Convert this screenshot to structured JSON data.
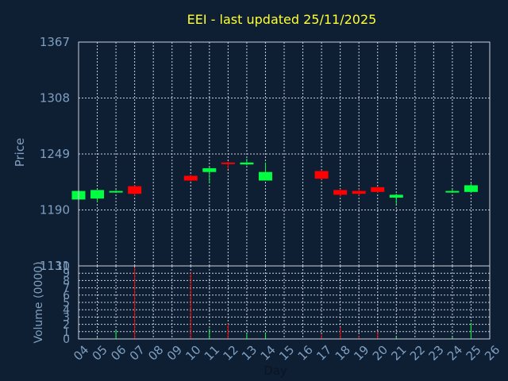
{
  "chart_data": {
    "type": "candlestick",
    "title": "EEI - last updated 25/11/2025",
    "ylabel": "Price",
    "ylabel_volume": "Volume (0000)",
    "xlabel": "Day",
    "ylim": [
      1131,
      1367
    ],
    "y_ticks": [
      "1367",
      "1308",
      "1249",
      "1190",
      "1131"
    ],
    "volume_ylim": [
      0,
      10
    ],
    "volume_ticks": [
      "0",
      "1",
      "2",
      "3",
      "4",
      "5",
      "6",
      "7",
      "8",
      "9",
      "10"
    ],
    "x_ticks": [
      "04",
      "05",
      "06",
      "07",
      "08",
      "09",
      "10",
      "11",
      "12",
      "13",
      "14",
      "15",
      "16",
      "17",
      "18",
      "19",
      "20",
      "21",
      "22",
      "23",
      "24",
      "25",
      "26"
    ],
    "colors": {
      "up": "#00ff40",
      "down": "#ff0000",
      "background": "#0f1f33",
      "text": "#7f9fc0",
      "title": "#ffff33"
    },
    "candles": [
      {
        "day": "04",
        "open": 1201,
        "high": 1210,
        "low": 1199,
        "close": 1210
      },
      {
        "day": "05",
        "open": 1202,
        "high": 1211,
        "low": 1198,
        "close": 1211
      },
      {
        "day": "06",
        "open": 1209,
        "high": 1211,
        "low": 1208,
        "close": 1210
      },
      {
        "day": "07",
        "open": 1215,
        "high": 1216,
        "low": 1205,
        "close": 1207
      },
      {
        "day": "10",
        "open": 1226,
        "high": 1227,
        "low": 1220,
        "close": 1221
      },
      {
        "day": "11",
        "open": 1230,
        "high": 1235,
        "low": 1218,
        "close": 1234
      },
      {
        "day": "12",
        "open": 1240,
        "high": 1241,
        "low": 1233,
        "close": 1239
      },
      {
        "day": "13",
        "open": 1238,
        "high": 1244,
        "low": 1237,
        "close": 1240
      },
      {
        "day": "14",
        "open": 1221,
        "high": 1240,
        "low": 1221,
        "close": 1230
      },
      {
        "day": "17",
        "open": 1231,
        "high": 1232,
        "low": 1222,
        "close": 1223
      },
      {
        "day": "18",
        "open": 1211,
        "high": 1212,
        "low": 1204,
        "close": 1206
      },
      {
        "day": "19",
        "open": 1210,
        "high": 1212,
        "low": 1205,
        "close": 1207
      },
      {
        "day": "20",
        "open": 1214,
        "high": 1215,
        "low": 1208,
        "close": 1209
      },
      {
        "day": "21",
        "open": 1203,
        "high": 1207,
        "low": 1196,
        "close": 1206
      },
      {
        "day": "24",
        "open": 1209,
        "high": 1212,
        "low": 1208,
        "close": 1210
      },
      {
        "day": "25",
        "open": 1209,
        "high": 1218,
        "low": 1208,
        "close": 1216
      }
    ],
    "volume": [
      {
        "day": "04",
        "value": 0.1,
        "dir": "up"
      },
      {
        "day": "05",
        "value": 0.2,
        "dir": "up"
      },
      {
        "day": "06",
        "value": 1.2,
        "dir": "up"
      },
      {
        "day": "07",
        "value": 9.8,
        "dir": "down"
      },
      {
        "day": "10",
        "value": 9.1,
        "dir": "down"
      },
      {
        "day": "11",
        "value": 1.4,
        "dir": "up"
      },
      {
        "day": "12",
        "value": 2.1,
        "dir": "down"
      },
      {
        "day": "13",
        "value": 0.7,
        "dir": "up"
      },
      {
        "day": "14",
        "value": 0.8,
        "dir": "up"
      },
      {
        "day": "17",
        "value": 0.6,
        "dir": "down"
      },
      {
        "day": "18",
        "value": 1.6,
        "dir": "down"
      },
      {
        "day": "19",
        "value": 0.4,
        "dir": "down"
      },
      {
        "day": "20",
        "value": 1.0,
        "dir": "down"
      },
      {
        "day": "21",
        "value": 0.3,
        "dir": "up"
      },
      {
        "day": "24",
        "value": 0.3,
        "dir": "up"
      },
      {
        "day": "25",
        "value": 2.2,
        "dir": "up"
      }
    ],
    "grid": true
  }
}
